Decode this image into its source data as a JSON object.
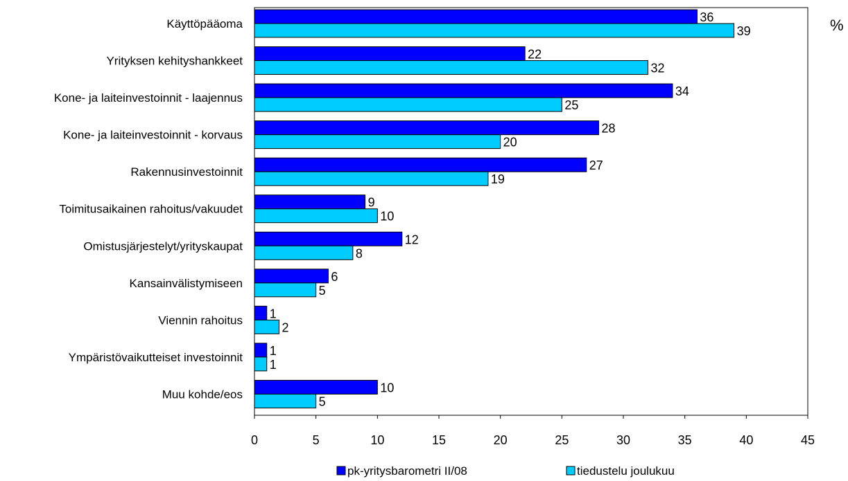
{
  "chart_data": {
    "type": "bar",
    "orientation": "horizontal",
    "unit": "%",
    "categories": [
      "Käyttöpääoma",
      "Yrityksen kehityshankkeet",
      "Kone- ja laiteinvestoinnit - laajennus",
      "Kone- ja laiteinvestoinnit - korvaus",
      "Rakennusinvestoinnit",
      "Toimitusaikainen rahoitus/vakuudet",
      "Omistusjärjestelyt/yrityskaupat",
      "Kansainvälistymiseen",
      "Viennin rahoitus",
      "Ympäristövaikutteiset investoinnit",
      "Muu kohde/eos"
    ],
    "series": [
      {
        "name": "pk-yritysbarometri II/08",
        "color": "#0000ff",
        "values": [
          36,
          22,
          34,
          28,
          27,
          9,
          12,
          6,
          1,
          1,
          10
        ]
      },
      {
        "name": "tiedustelu joulukuu",
        "color": "#00ccff",
        "values": [
          39,
          32,
          25,
          20,
          19,
          10,
          8,
          5,
          2,
          1,
          5
        ]
      }
    ],
    "xlim": [
      0,
      45
    ],
    "xticks": [
      "0",
      "5",
      "10",
      "15",
      "20",
      "25",
      "30",
      "35",
      "40",
      "45"
    ],
    "grid": false,
    "legend": "bottom"
  }
}
